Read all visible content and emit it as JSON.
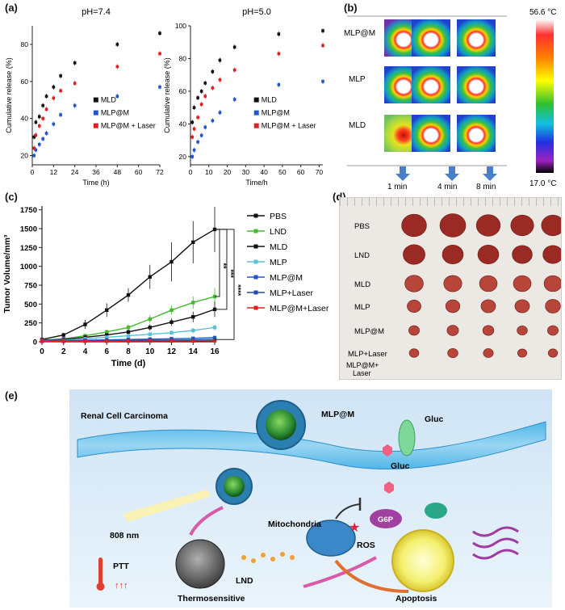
{
  "panel_labels": {
    "a": "(a)",
    "b": "(b)",
    "c": "(c)",
    "d": "(d)",
    "e": "(e)"
  },
  "colors": {
    "MLD": "#111111",
    "MLP@M": "#2255cc",
    "MLP@M + Laser": "#e02020",
    "PBS": "#111111",
    "LND": "#44b830",
    "MLP": "#5bc0d6",
    "MLP+Laser": "#1f4fa8",
    "MLP@M+Laser": "#e02020"
  },
  "chart_data": [
    {
      "type": "scatter",
      "title": "pH=7.4",
      "xlabel": "Time (h)",
      "ylabel": "Cumulative release (%)",
      "xlim": [
        0,
        72
      ],
      "ylim": [
        15,
        90
      ],
      "xticks": [
        0,
        12,
        24,
        36,
        48,
        60,
        72
      ],
      "yticks": [
        20,
        40,
        60,
        80
      ],
      "legend": [
        "MLD",
        "MLP@M",
        "MLP@M + Laser"
      ],
      "series": [
        {
          "name": "MLD",
          "x": [
            1,
            2,
            4,
            6,
            8,
            12,
            16,
            24,
            48,
            72
          ],
          "y": [
            30,
            38,
            41,
            47,
            52,
            57,
            63,
            70,
            80,
            86
          ]
        },
        {
          "name": "MLP@M",
          "x": [
            1,
            2,
            4,
            6,
            8,
            12,
            16,
            24,
            48,
            72
          ],
          "y": [
            20,
            23,
            26,
            29,
            32,
            37,
            42,
            47,
            52,
            57
          ]
        },
        {
          "name": "MLP@M + Laser",
          "x": [
            1,
            2,
            4,
            6,
            8,
            12,
            16,
            24,
            48,
            72
          ],
          "y": [
            24,
            31,
            36,
            40,
            45,
            51,
            55,
            59,
            68,
            75
          ]
        }
      ]
    },
    {
      "type": "scatter",
      "title": "pH=5.0",
      "xlabel": "Time/h",
      "ylabel": "Cumulative release (%)",
      "xlim": [
        0,
        72
      ],
      "ylim": [
        15,
        100
      ],
      "xticks": [
        0,
        10,
        20,
        30,
        40,
        50,
        60,
        70
      ],
      "yticks": [
        20,
        40,
        60,
        80,
        100
      ],
      "legend": [
        "MLD",
        "MLP@M",
        "MLP@M + Laser"
      ],
      "series": [
        {
          "name": "MLD",
          "x": [
            1,
            2,
            4,
            6,
            8,
            12,
            16,
            24,
            48,
            72
          ],
          "y": [
            41,
            50,
            56,
            60,
            65,
            72,
            79,
            87,
            95,
            97
          ]
        },
        {
          "name": "MLP@M",
          "x": [
            1,
            2,
            4,
            6,
            8,
            12,
            16,
            24,
            48,
            72
          ],
          "y": [
            20,
            24,
            29,
            33,
            38,
            42,
            47,
            55,
            64,
            66
          ]
        },
        {
          "name": "MLP@M + Laser",
          "x": [
            1,
            2,
            4,
            6,
            8,
            12,
            16,
            24,
            48,
            72
          ],
          "y": [
            32,
            37,
            44,
            52,
            57,
            62,
            67,
            73,
            83,
            88
          ]
        }
      ]
    },
    {
      "type": "line",
      "title": "",
      "xlabel": "Time (d)",
      "ylabel": "Tumor Volume/mm³",
      "xlim": [
        0,
        16
      ],
      "ylim": [
        0,
        1800
      ],
      "xticks": [
        0,
        2,
        4,
        6,
        8,
        10,
        12,
        14,
        16
      ],
      "yticks": [
        0,
        250,
        500,
        750,
        1000,
        1250,
        1500,
        1750
      ],
      "series": [
        {
          "name": "PBS",
          "x": [
            0,
            2,
            4,
            6,
            8,
            10,
            12,
            14,
            16
          ],
          "y": [
            30,
            90,
            230,
            420,
            620,
            860,
            1060,
            1320,
            1490
          ],
          "err": [
            10,
            30,
            60,
            90,
            90,
            160,
            260,
            280,
            300
          ]
        },
        {
          "name": "LND",
          "x": [
            0,
            2,
            4,
            6,
            8,
            10,
            12,
            14,
            16
          ],
          "y": [
            20,
            40,
            80,
            130,
            190,
            300,
            420,
            520,
            600
          ],
          "err": [
            5,
            10,
            20,
            30,
            40,
            50,
            60,
            80,
            110
          ]
        },
        {
          "name": "MLD",
          "x": [
            0,
            2,
            4,
            6,
            8,
            10,
            12,
            14,
            16
          ],
          "y": [
            20,
            30,
            60,
            90,
            130,
            190,
            260,
            330,
            430
          ],
          "err": [
            5,
            8,
            15,
            20,
            30,
            40,
            50,
            70,
            100
          ]
        },
        {
          "name": "MLP",
          "x": [
            0,
            2,
            4,
            6,
            8,
            10,
            12,
            14,
            16
          ],
          "y": [
            15,
            20,
            40,
            60,
            80,
            100,
            120,
            150,
            190
          ],
          "err": [
            4,
            6,
            10,
            15,
            20,
            25,
            30,
            35,
            40
          ]
        },
        {
          "name": "MLP@M",
          "x": [
            0,
            2,
            4,
            6,
            8,
            10,
            12,
            14,
            16
          ],
          "y": [
            10,
            15,
            20,
            25,
            30,
            35,
            40,
            45,
            55
          ],
          "err": [
            3,
            4,
            5,
            6,
            8,
            10,
            12,
            14,
            15
          ]
        },
        {
          "name": "MLP+Laser",
          "x": [
            0,
            2,
            4,
            6,
            8,
            10,
            12,
            14,
            16
          ],
          "y": [
            8,
            10,
            12,
            15,
            18,
            20,
            22,
            25,
            30
          ],
          "err": [
            2,
            3,
            4,
            5,
            6,
            6,
            7,
            8,
            10
          ]
        },
        {
          "name": "MLP@M+Laser",
          "x": [
            0,
            2,
            4,
            6,
            8,
            10,
            12,
            14,
            16
          ],
          "y": [
            5,
            6,
            7,
            8,
            9,
            10,
            11,
            12,
            14
          ],
          "err": [
            2,
            2,
            3,
            3,
            4,
            4,
            4,
            5,
            5
          ]
        }
      ],
      "significance": [
        "**",
        "***",
        "****"
      ]
    }
  ],
  "panel_b": {
    "rows": [
      "MLP@M",
      "MLP",
      "MLD"
    ],
    "times": [
      "1 min",
      "4 min",
      "8 min"
    ],
    "scale_max": "56.6 °C",
    "scale_min": "17.0 °C"
  },
  "panel_d": {
    "rows": [
      "PBS",
      "LND",
      "MLD",
      "MLP",
      "MLP@M",
      "MLP+Laser",
      "MLP@M+\nLaser"
    ],
    "row_label_last_1": "MLP@M+",
    "row_label_last_2": "Laser",
    "tumor_sizes_rel": [
      [
        0.95,
        1.0,
        0.9,
        0.85,
        0.85
      ],
      [
        0.8,
        0.75,
        0.75,
        0.7,
        0.7
      ],
      [
        0.62,
        0.6,
        0.58,
        0.58,
        0.58
      ],
      [
        0.38,
        0.4,
        0.42,
        0.42,
        0.45
      ],
      [
        0.22,
        0.26,
        0.24,
        0.2,
        0.22
      ],
      [
        0.16,
        0.2,
        0.18,
        0.14,
        0.15
      ],
      [
        0,
        0,
        0,
        0,
        0
      ]
    ]
  },
  "panel_e": {
    "renal": "Renal Cell Carcinoma",
    "mlpm": "MLP@M",
    "gluc1": "Gluc",
    "gluc2": "Gluc",
    "nm808": "808 nm",
    "ptt": "PTT",
    "mito": "Mitochondria",
    "ros": "ROS",
    "g6p": "G6P",
    "lnd": "LND",
    "thermo": "Thermosensitive",
    "apoptosis": "Apoptosis"
  }
}
